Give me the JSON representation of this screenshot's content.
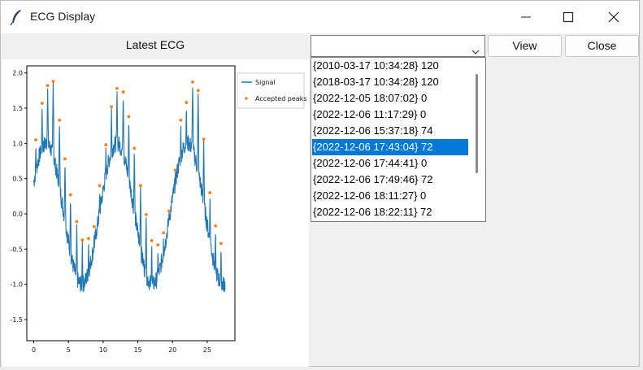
{
  "window": {
    "title": "ECG Display",
    "controls": [
      "minimize",
      "maximize",
      "close"
    ]
  },
  "left_panel": {
    "label": "Latest ECG"
  },
  "combobox": {
    "value": "",
    "arrow_icon": "chevron-down-icon"
  },
  "buttons": {
    "view": "View",
    "close": "Close"
  },
  "dropdown": {
    "items": [
      "{2010-03-17 10:34:28} 120",
      "{2018-03-17 10:34:28} 120",
      "{2022-12-05 18:07:02} 0",
      "{2022-12-06 11:17:29} 0",
      "{2022-12-06 15:37:18} 74",
      "{2022-12-06 17:43:04} 72",
      "{2022-12-06 17:44:41} 0",
      "{2022-12-06 17:49:46} 72",
      "{2022-12-06 18:11:27} 0",
      "{2022-12-06 18:22:11} 72"
    ],
    "selected_index": 5,
    "selection_color": "#0078d7"
  },
  "chart_data": {
    "type": "line",
    "xlim": [
      -1,
      29
    ],
    "ylim": [
      -1.8,
      2.1
    ],
    "xticks": [
      0,
      5,
      10,
      15,
      20,
      25
    ],
    "yticks": [
      2.0,
      1.5,
      1.0,
      0.5,
      0.0,
      -0.5,
      -1.0,
      -1.5
    ],
    "xtick_labels": [
      "0",
      "5",
      "10",
      "15",
      "20",
      "25"
    ],
    "ytick_labels": [
      "2.0",
      "1.5",
      "1.0",
      "0.5",
      "0.0",
      "-0.5",
      "-1.0",
      "-1.5"
    ],
    "legend": {
      "position": "upper-right-outside",
      "entries": [
        "Signal",
        "Accepted peaks"
      ]
    },
    "series": [
      {
        "name": "Signal",
        "color": "#1f77b4",
        "style": "line"
      },
      {
        "name": "Accepted peaks",
        "color": "#ff7f0e",
        "style": "markers",
        "x": [
          0.3,
          1.2,
          2.0,
          2.8,
          3.7,
          4.5,
          5.3,
          6.2,
          7.0,
          7.9,
          8.7,
          9.5,
          10.4,
          11.2,
          12.0,
          12.9,
          13.7,
          14.5,
          15.4,
          16.2,
          17.0,
          17.9,
          18.7,
          19.5,
          20.4,
          21.2,
          22.0,
          22.9,
          23.7,
          24.5,
          25.4,
          26.2,
          27.0
        ],
        "y": [
          1.05,
          1.57,
          1.82,
          1.88,
          1.33,
          0.78,
          0.27,
          -0.11,
          -0.37,
          -0.35,
          -0.18,
          0.4,
          0.98,
          1.52,
          1.78,
          1.73,
          1.38,
          0.93,
          0.4,
          -0.01,
          -0.38,
          -0.44,
          -0.27,
          0.04,
          0.62,
          1.33,
          1.58,
          1.87,
          1.75,
          1.06,
          0.3,
          -0.17,
          -0.42
        ]
      }
    ]
  }
}
